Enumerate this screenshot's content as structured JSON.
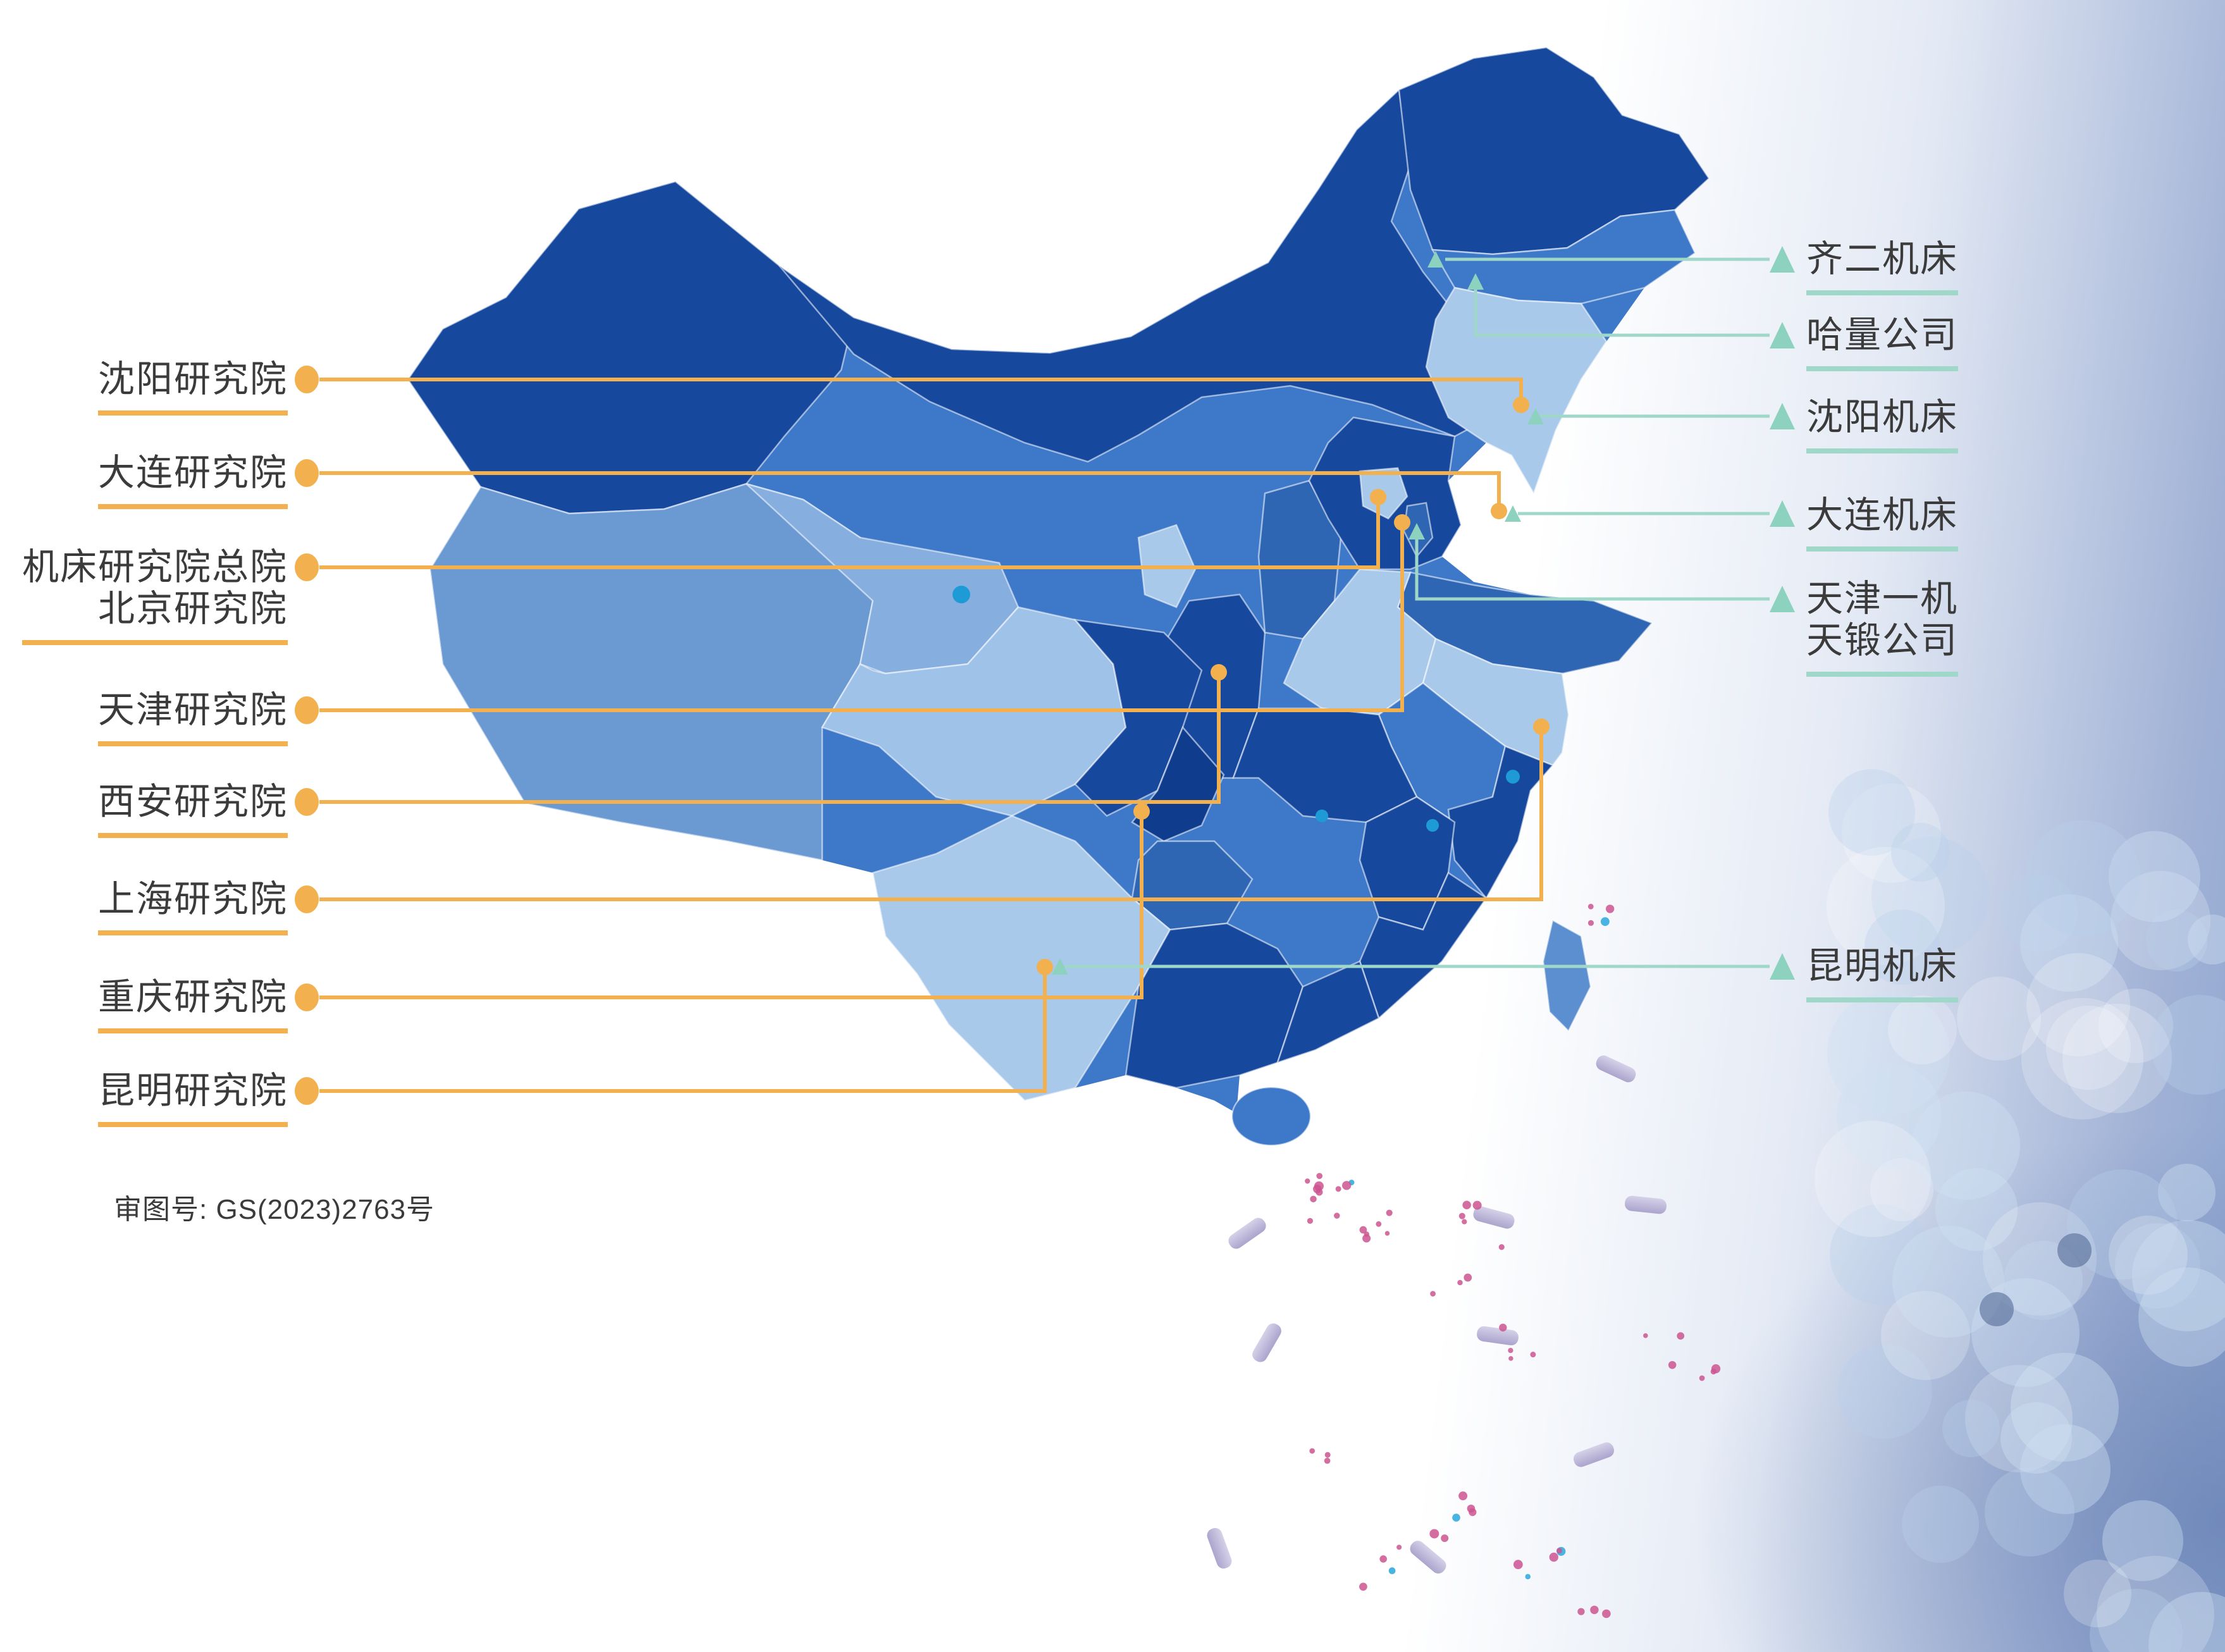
{
  "institutes": [
    {
      "name": "沈阳研究院"
    },
    {
      "name": "大连研究院"
    },
    {
      "name": "机床研究院总院",
      "name2": "北京研究院"
    },
    {
      "name": "天津研究院"
    },
    {
      "name": "西安研究院"
    },
    {
      "name": "上海研究院"
    },
    {
      "name": "重庆研究院"
    },
    {
      "name": "昆明研究院"
    }
  ],
  "companies": [
    {
      "name": "齐二机床"
    },
    {
      "name": "哈量公司"
    },
    {
      "name": "沈阳机床"
    },
    {
      "name": "大连机床"
    },
    {
      "name": "天津一机",
      "name2": "天锻公司"
    },
    {
      "name": "昆明机床"
    }
  ],
  "map_license": "审图号: GS(2023)2763号",
  "colors": {
    "institute_accent": "#F2B14E",
    "company_accent": "#9FD8C8",
    "company_triangle": "#8CD2BE",
    "text": "#3b3b3b",
    "map_dark": "#16489E",
    "map_medium": "#3E79C9",
    "map_light": "#7FA9DC",
    "map_pale": "#A9C9EA",
    "background_right": "#8ea6d0"
  }
}
